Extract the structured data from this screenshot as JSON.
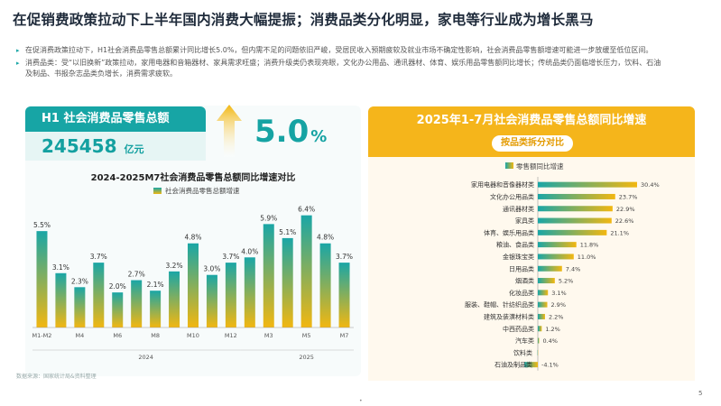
{
  "title": "在促销费政策拉动下上半年国内消费大幅提振；消费品类分化明显，家电等行业成为增长黑马",
  "bullets": [
    "在促消费政策拉动下，H1社会消费品零售总额累计同比增长5.0%，但内需不足的问题依旧严峻，受居民收入预期疲软及就业市场不确定性影响，社会消费品零售额增速可能进一步放缓至低位区间。",
    "消费品类：受“以旧换新”政策拉动，家用电器和音箱器材、家具需求旺盛；消费升级类仍表现亮眼，文化办公用品、通讯器材、体育、娱乐用品零售额同比增长；传统品类仍面临增长压力，饮料、石油及制品、书报杂志品类负增长，消费需求疲软。"
  ],
  "h1_card": {
    "label": "H1 社会消费品零售总额",
    "value": "245458",
    "unit": "亿元",
    "growth": "5.0",
    "growth_unit": "%"
  },
  "icons": {
    "bullet": "triangle-bullet-icon",
    "arrow": "up-arrow-icon"
  },
  "colors": {
    "teal": "#1aa6a6",
    "orange": "#f2b711"
  },
  "left_chart": {
    "title": "2024-2025M7社会消费品零售总额同比增速对比",
    "legend": "社会消费品零售总额增速"
  },
  "right_chart": {
    "title": "2025年1-7月社会消费品零售总额同比增速",
    "subtitle": "按品类拆分对比",
    "legend": "零售额同比增速"
  },
  "source": "数据来源：国家统计局&资料整理",
  "page_number": "5",
  "chart_data": [
    {
      "type": "bar",
      "title": "2024-2025M7社会消费品零售总额同比增速对比",
      "categories": [
        "M1-M2",
        "M3",
        "M4",
        "M5",
        "M6",
        "M7",
        "M8",
        "M9",
        "M10",
        "M11",
        "M12",
        "M1-M2",
        "M3",
        "M4",
        "M5",
        "M6",
        "M7"
      ],
      "tick_labels": [
        "M1-M2",
        "",
        "M4",
        "",
        "M6",
        "",
        "M8",
        "",
        "M10",
        "",
        "M12",
        "",
        "M3",
        "",
        "M5",
        "",
        "M7"
      ],
      "groups": [
        "2024",
        "2025"
      ],
      "series": [
        {
          "name": "社会消费品零售总额增速",
          "values": [
            5.5,
            3.1,
            2.3,
            3.7,
            2.0,
            2.7,
            2.1,
            3.2,
            4.8,
            3.0,
            3.7,
            4.0,
            5.9,
            5.1,
            6.4,
            4.8,
            3.7
          ],
          "labels": [
            "5.5%",
            "3.1%",
            "2.3%",
            "3.7%",
            "2.0%",
            "2.7%",
            "2.1%",
            "3.2%",
            "4.8%",
            "3.0%",
            "3.7%",
            "4.0%",
            "5.9%",
            "5.1%",
            "6.4%",
            "4.8%",
            "3.7%"
          ]
        }
      ],
      "ylim": [
        0,
        7
      ],
      "grid": false,
      "legend_position": "top"
    },
    {
      "type": "bar",
      "orientation": "horizontal",
      "title": "2025年1-7月社会消费品零售总额同比增速",
      "categories": [
        "家用电器和音像器材类",
        "文化办公用品类",
        "通讯器材类",
        "家具类",
        "体育、娱乐用品类",
        "粮油、食品类",
        "金银珠宝类",
        "日用品类",
        "烟酒类",
        "化妆品类",
        "服装、鞋帽、针纺织品类",
        "建筑及装潢材料类",
        "中西药品类",
        "汽车类",
        "饮料类",
        "石油及制品类"
      ],
      "series": [
        {
          "name": "零售额同比增速",
          "values": [
            30.4,
            23.7,
            22.9,
            22.6,
            21.1,
            11.8,
            11.0,
            7.4,
            5.2,
            3.1,
            2.9,
            2.2,
            1.2,
            0.4,
            -0.1,
            -4.1
          ],
          "labels": [
            "30.4%",
            "23.7%",
            "22.9%",
            "22.6%",
            "21.1%",
            "11.8%",
            "11.0%",
            "7.4%",
            "5.2%",
            "3.1%",
            "2.9%",
            "2.2%",
            "1.2%",
            "0.4%",
            "",
            "-4.1%"
          ]
        }
      ],
      "xlim": [
        -5,
        32
      ],
      "grid": false,
      "legend_position": "top-left"
    }
  ]
}
